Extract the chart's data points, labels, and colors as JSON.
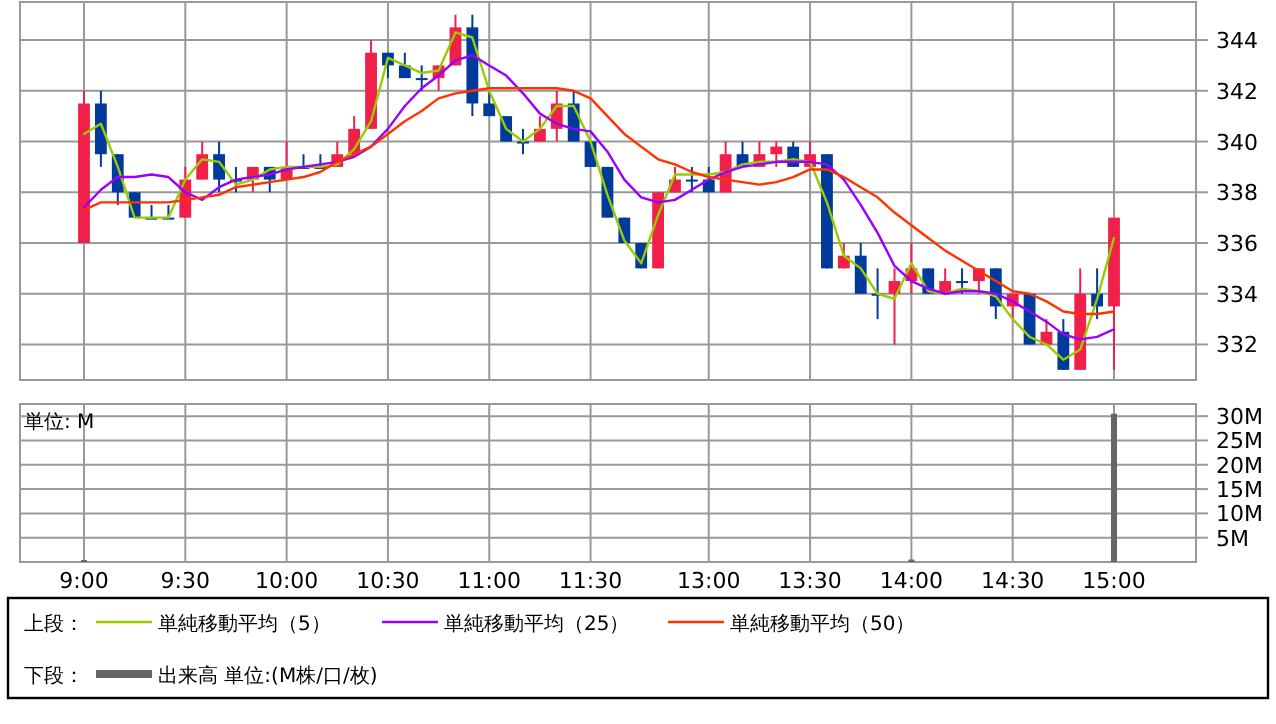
{
  "chart_data": [
    {
      "type": "candlestick",
      "ylim": [
        330.6,
        345.5
      ],
      "yticks": [
        332,
        334,
        336,
        338,
        340,
        342,
        344
      ],
      "grid": true,
      "tick_labels": "y",
      "legend": "bottom",
      "legend_title": "上段：",
      "categories": [
        null,
        null,
        null,
        null,
        null,
        null,
        null,
        null,
        null,
        null,
        null,
        null,
        null,
        null,
        null,
        null,
        null,
        null,
        null,
        null,
        null,
        null,
        null,
        null,
        null,
        null,
        null,
        null,
        null,
        null,
        null,
        null,
        null,
        null,
        null,
        null,
        null,
        null,
        null,
        null,
        null,
        null,
        null,
        null,
        null,
        null,
        null,
        null,
        null,
        null,
        null,
        null,
        null,
        null,
        null,
        null,
        null,
        null,
        null,
        null,
        null,
        null
      ],
      "ohlc": [
        [
          336,
          342,
          336,
          341.5
        ],
        [
          341.5,
          342,
          339,
          339.5
        ],
        [
          339.5,
          339.5,
          337.5,
          338
        ],
        [
          338,
          338,
          337,
          337
        ],
        [
          337,
          337.5,
          337,
          337
        ],
        [
          337,
          337.5,
          337,
          337
        ],
        [
          337,
          339,
          337,
          338.5
        ],
        [
          338.5,
          340,
          338.5,
          339.5
        ],
        [
          339.5,
          340,
          338,
          338.5
        ],
        [
          338.5,
          339,
          338,
          338.5
        ],
        [
          338.5,
          339,
          338,
          339
        ],
        [
          339,
          339,
          338,
          338.5
        ],
        [
          338.5,
          340,
          338.5,
          339
        ],
        [
          339,
          339.5,
          339,
          339
        ],
        [
          339,
          339.5,
          339,
          339
        ],
        [
          339,
          340,
          339,
          339.5
        ],
        [
          339.5,
          341,
          339.5,
          340.5
        ],
        [
          340.5,
          344,
          340.5,
          343.5
        ],
        [
          343.5,
          343.5,
          342.5,
          343
        ],
        [
          343,
          343.5,
          342.5,
          342.5
        ],
        [
          342.5,
          343,
          342,
          342.5
        ],
        [
          342.5,
          343,
          342,
          343
        ],
        [
          343,
          345,
          343,
          344.5
        ],
        [
          344.5,
          345,
          341,
          341.5
        ],
        [
          341.5,
          342,
          341,
          341
        ],
        [
          341,
          341,
          340,
          340
        ],
        [
          340,
          340.5,
          339.5,
          340
        ],
        [
          340,
          341,
          340,
          340.5
        ],
        [
          340.5,
          342,
          340,
          341.5
        ],
        [
          341.5,
          342,
          340,
          340
        ],
        [
          340,
          340,
          339,
          339
        ],
        [
          339,
          339,
          337,
          337
        ],
        [
          337,
          337,
          336,
          336
        ],
        [
          336,
          336,
          335,
          335
        ],
        [
          335,
          338,
          335,
          338
        ],
        [
          338,
          339,
          338,
          338.5
        ],
        [
          338.5,
          339,
          338,
          338.5
        ],
        [
          338.5,
          339,
          338,
          338
        ],
        [
          338,
          340,
          338,
          339.5
        ],
        [
          339.5,
          340,
          339,
          339
        ],
        [
          339,
          340,
          339,
          339.5
        ],
        [
          339.5,
          340,
          339,
          339.8
        ],
        [
          339.8,
          340,
          339,
          339
        ],
        [
          339,
          340,
          339,
          339.5
        ],
        [
          339.5,
          339.5,
          335,
          335
        ],
        [
          335,
          336,
          335,
          335.5
        ],
        [
          335.5,
          336,
          334,
          334
        ],
        [
          334,
          335,
          333,
          334
        ],
        [
          334,
          335,
          332,
          334.5
        ],
        [
          334.5,
          336,
          334,
          335
        ],
        [
          335,
          335,
          334,
          334
        ],
        [
          334,
          335,
          334,
          334.5
        ],
        [
          334.5,
          335,
          334,
          334.5
        ],
        [
          334.5,
          335,
          334,
          335
        ],
        [
          335,
          335,
          333,
          333.5
        ],
        [
          333.5,
          334,
          333,
          334
        ],
        [
          334,
          334,
          332,
          332
        ],
        [
          332,
          333,
          332,
          332.5
        ],
        [
          332.5,
          333,
          331,
          331
        ],
        [
          331,
          335,
          331,
          334
        ],
        [
          334,
          335,
          333,
          333.5
        ],
        [
          333.5,
          337,
          331,
          337
        ]
      ],
      "colors": [
        "#f0204a",
        "#003a9a",
        "#003a9a",
        "#003a9a",
        "#003a9a",
        "#003a9a",
        "#f0204a",
        "#f0204a",
        "#003a9a",
        "#003a9a",
        "#f0204a",
        "#003a9a",
        "#f0204a",
        "#003a9a",
        "#003a9a",
        "#f0204a",
        "#f0204a",
        "#f0204a",
        "#003a9a",
        "#003a9a",
        "#003a9a",
        "#f0204a",
        "#f0204a",
        "#003a9a",
        "#003a9a",
        "#003a9a",
        "#003a9a",
        "#f0204a",
        "#f0204a",
        "#003a9a",
        "#003a9a",
        "#003a9a",
        "#003a9a",
        "#003a9a",
        "#f0204a",
        "#f0204a",
        "#003a9a",
        "#003a9a",
        "#f0204a",
        "#003a9a",
        "#f0204a",
        "#f0204a",
        "#003a9a",
        "#f0204a",
        "#003a9a",
        "#f0204a",
        "#003a9a",
        "#003a9a",
        "#f0204a",
        "#f0204a",
        "#003a9a",
        "#f0204a",
        "#003a9a",
        "#f0204a",
        "#003a9a",
        "#f0204a",
        "#003a9a",
        "#f0204a",
        "#003a9a",
        "#f0204a",
        "#003a9a",
        "#f0204a"
      ],
      "series": [
        {
          "type": "line",
          "name": "単純移動平均（5）",
          "color": "#99cc00",
          "values": [
            340.3,
            340.7,
            339,
            337,
            337,
            337,
            338.5,
            339.3,
            339.2,
            338.3,
            338.5,
            338.9,
            339,
            339,
            339,
            339.1,
            339.7,
            340.8,
            343.3,
            343,
            342.7,
            342.8,
            344.3,
            344.1,
            342,
            340.5,
            340,
            340.5,
            341.4,
            341.4,
            340,
            337.9,
            336.1,
            335.2,
            337.1,
            338.7,
            338.7,
            338.7,
            338.8,
            339.1,
            339.2,
            339.2,
            339.3,
            339.2,
            337.6,
            335.5,
            335,
            334,
            333.8,
            335.2,
            334.1,
            334,
            334.2,
            334.1,
            333.9,
            333,
            332.3,
            332,
            331.4,
            331.8,
            333.8,
            336.2
          ]
        },
        {
          "type": "line",
          "name": "単純移動平均（25）",
          "color": "#9900ff",
          "values": [
            337.4,
            338.1,
            338.6,
            338.6,
            338.7,
            338.6,
            338,
            337.7,
            338.2,
            338.5,
            338.6,
            338.7,
            338.9,
            339,
            339.1,
            339.2,
            339.4,
            339.8,
            340.5,
            341.4,
            342.1,
            342.6,
            343.2,
            343.4,
            343,
            342.6,
            341.9,
            341.1,
            340.7,
            340.5,
            340.4,
            339.6,
            338.5,
            337.8,
            337.6,
            337.7,
            338.1,
            338.5,
            338.8,
            339,
            339.1,
            339.2,
            339.2,
            339.2,
            339.1,
            338.5,
            337.5,
            336.4,
            335.1,
            334.5,
            334.2,
            334,
            334.1,
            334.1,
            334,
            333.7,
            333.3,
            332.9,
            332.4,
            332.2,
            332.3,
            332.6
          ]
        },
        {
          "type": "line",
          "name": "単純移動平均（50）",
          "color": "#ff3300",
          "values": [
            337.3,
            337.6,
            337.6,
            337.6,
            337.6,
            337.6,
            337.7,
            337.8,
            337.9,
            338.2,
            338.3,
            338.4,
            338.5,
            338.6,
            338.8,
            339.2,
            339.5,
            339.8,
            340.3,
            340.8,
            341.2,
            341.7,
            341.9,
            342,
            342.1,
            342.1,
            342.1,
            342.1,
            342.1,
            342,
            341.7,
            341,
            340.3,
            339.8,
            339.3,
            339.1,
            338.8,
            338.6,
            338.5,
            338.4,
            338.3,
            338.4,
            338.6,
            338.9,
            338.9,
            338.6,
            338.2,
            337.8,
            337.2,
            336.7,
            336.2,
            335.7,
            335.3,
            334.9,
            334.5,
            334.1,
            334,
            333.7,
            333.3,
            333.2,
            333.2,
            333.3
          ]
        }
      ]
    },
    {
      "type": "bar",
      "ylim": [
        0,
        32.5
      ],
      "yticks": [
        {
          "value": 5,
          "label": "5M"
        },
        {
          "value": 10,
          "label": "10M"
        },
        {
          "value": 15,
          "label": "15M"
        },
        {
          "value": 20,
          "label": "20M"
        },
        {
          "value": 25,
          "label": "25M"
        },
        {
          "value": 30,
          "label": "30M"
        }
      ],
      "grid": true,
      "legend": "bottom",
      "legend_title": "下段：",
      "annotations": [
        "単位: M"
      ],
      "categories": [
        "9:00",
        null,
        null,
        null,
        null,
        null,
        "9:30",
        null,
        null,
        null,
        null,
        null,
        "10:00",
        null,
        null,
        null,
        null,
        null,
        "10:30",
        null,
        null,
        null,
        null,
        null,
        "11:00",
        null,
        null,
        null,
        null,
        null,
        "11:30",
        null,
        null,
        null,
        null,
        null,
        null,
        "13:00",
        null,
        null,
        null,
        null,
        null,
        "13:30",
        null,
        null,
        null,
        null,
        null,
        "14:00",
        null,
        null,
        null,
        null,
        null,
        "14:30",
        null,
        null,
        null,
        null,
        null,
        "15:00"
      ],
      "series": [
        {
          "name": "出来高 単位:(M株/口/枚)",
          "color": "#666666",
          "values": [
            0.4,
            null,
            null,
            null,
            null,
            null,
            null,
            null,
            null,
            null,
            null,
            null,
            null,
            null,
            null,
            null,
            null,
            null,
            null,
            null,
            null,
            null,
            null,
            null,
            null,
            null,
            null,
            null,
            null,
            null,
            null,
            null,
            null,
            null,
            null,
            null,
            null,
            null,
            null,
            null,
            null,
            null,
            null,
            null,
            null,
            null,
            null,
            null,
            null,
            0.5,
            null,
            null,
            null,
            null,
            null,
            null,
            null,
            null,
            null,
            null,
            null,
            30.5
          ]
        }
      ]
    }
  ]
}
